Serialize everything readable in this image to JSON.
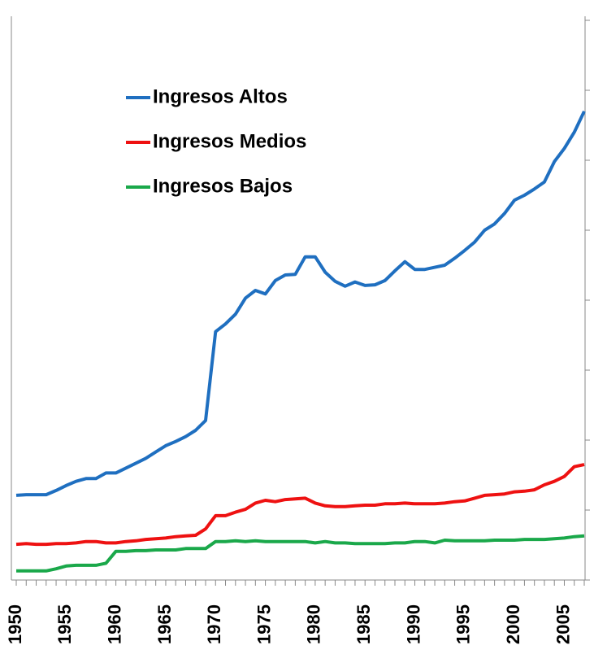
{
  "chart_data": {
    "type": "line",
    "x": [
      1950,
      1951,
      1952,
      1953,
      1954,
      1955,
      1956,
      1957,
      1958,
      1959,
      1960,
      1961,
      1962,
      1963,
      1964,
      1965,
      1966,
      1967,
      1968,
      1969,
      1970,
      1971,
      1972,
      1973,
      1974,
      1975,
      1976,
      1977,
      1978,
      1979,
      1980,
      1981,
      1982,
      1983,
      1984,
      1985,
      1986,
      1987,
      1988,
      1989,
      1990,
      1991,
      1992,
      1993,
      1994,
      1995,
      1996,
      1997,
      1998,
      1999,
      2000,
      2001,
      2002,
      2003,
      2004,
      2005,
      2006,
      2007
    ],
    "xlim": [
      1950,
      2007
    ],
    "xticks": [
      1950,
      1955,
      1960,
      1965,
      1970,
      1975,
      1980,
      1985,
      1990,
      1995,
      2000,
      2005
    ],
    "ylim": [
      0,
      8
    ],
    "yticks": [
      0,
      1,
      2,
      3,
      4,
      5,
      6,
      7,
      8
    ],
    "grid": false,
    "legend": "upper left",
    "series": [
      {
        "name": "Ingresos Altos",
        "color": "#1f6fc0",
        "values": [
          1.21,
          1.22,
          1.22,
          1.22,
          1.28,
          1.35,
          1.41,
          1.45,
          1.45,
          1.53,
          1.53,
          1.6,
          1.67,
          1.74,
          1.83,
          1.92,
          1.98,
          2.05,
          2.14,
          2.28,
          3.55,
          3.66,
          3.8,
          4.03,
          4.14,
          4.09,
          4.28,
          4.36,
          4.37,
          4.62,
          4.62,
          4.4,
          4.27,
          4.2,
          4.26,
          4.21,
          4.22,
          4.28,
          4.42,
          4.55,
          4.44,
          4.44,
          4.47,
          4.5,
          4.6,
          4.71,
          4.83,
          5.0,
          5.09,
          5.24,
          5.43,
          5.5,
          5.59,
          5.69,
          5.98,
          6.17,
          6.4,
          6.7
        ]
      },
      {
        "name": "Ingresos Medios",
        "color": "#ee1111",
        "values": [
          0.51,
          0.52,
          0.51,
          0.51,
          0.52,
          0.52,
          0.53,
          0.55,
          0.55,
          0.53,
          0.53,
          0.55,
          0.56,
          0.58,
          0.59,
          0.6,
          0.62,
          0.63,
          0.64,
          0.73,
          0.92,
          0.92,
          0.97,
          1.01,
          1.1,
          1.14,
          1.12,
          1.15,
          1.16,
          1.17,
          1.1,
          1.06,
          1.05,
          1.05,
          1.06,
          1.07,
          1.07,
          1.09,
          1.09,
          1.1,
          1.09,
          1.09,
          1.09,
          1.1,
          1.12,
          1.13,
          1.17,
          1.21,
          1.22,
          1.23,
          1.26,
          1.27,
          1.29,
          1.36,
          1.41,
          1.48,
          1.62,
          1.65
        ]
      },
      {
        "name": "Ingresos Bajos",
        "color": "#1aa84a",
        "values": [
          0.13,
          0.13,
          0.13,
          0.13,
          0.16,
          0.2,
          0.21,
          0.21,
          0.21,
          0.24,
          0.41,
          0.41,
          0.42,
          0.42,
          0.43,
          0.43,
          0.43,
          0.45,
          0.45,
          0.45,
          0.55,
          0.55,
          0.56,
          0.55,
          0.56,
          0.55,
          0.55,
          0.55,
          0.55,
          0.55,
          0.53,
          0.55,
          0.53,
          0.53,
          0.52,
          0.52,
          0.52,
          0.52,
          0.53,
          0.53,
          0.55,
          0.55,
          0.53,
          0.57,
          0.56,
          0.56,
          0.56,
          0.56,
          0.57,
          0.57,
          0.57,
          0.58,
          0.58,
          0.58,
          0.59,
          0.6,
          0.62,
          0.63
        ]
      }
    ]
  }
}
